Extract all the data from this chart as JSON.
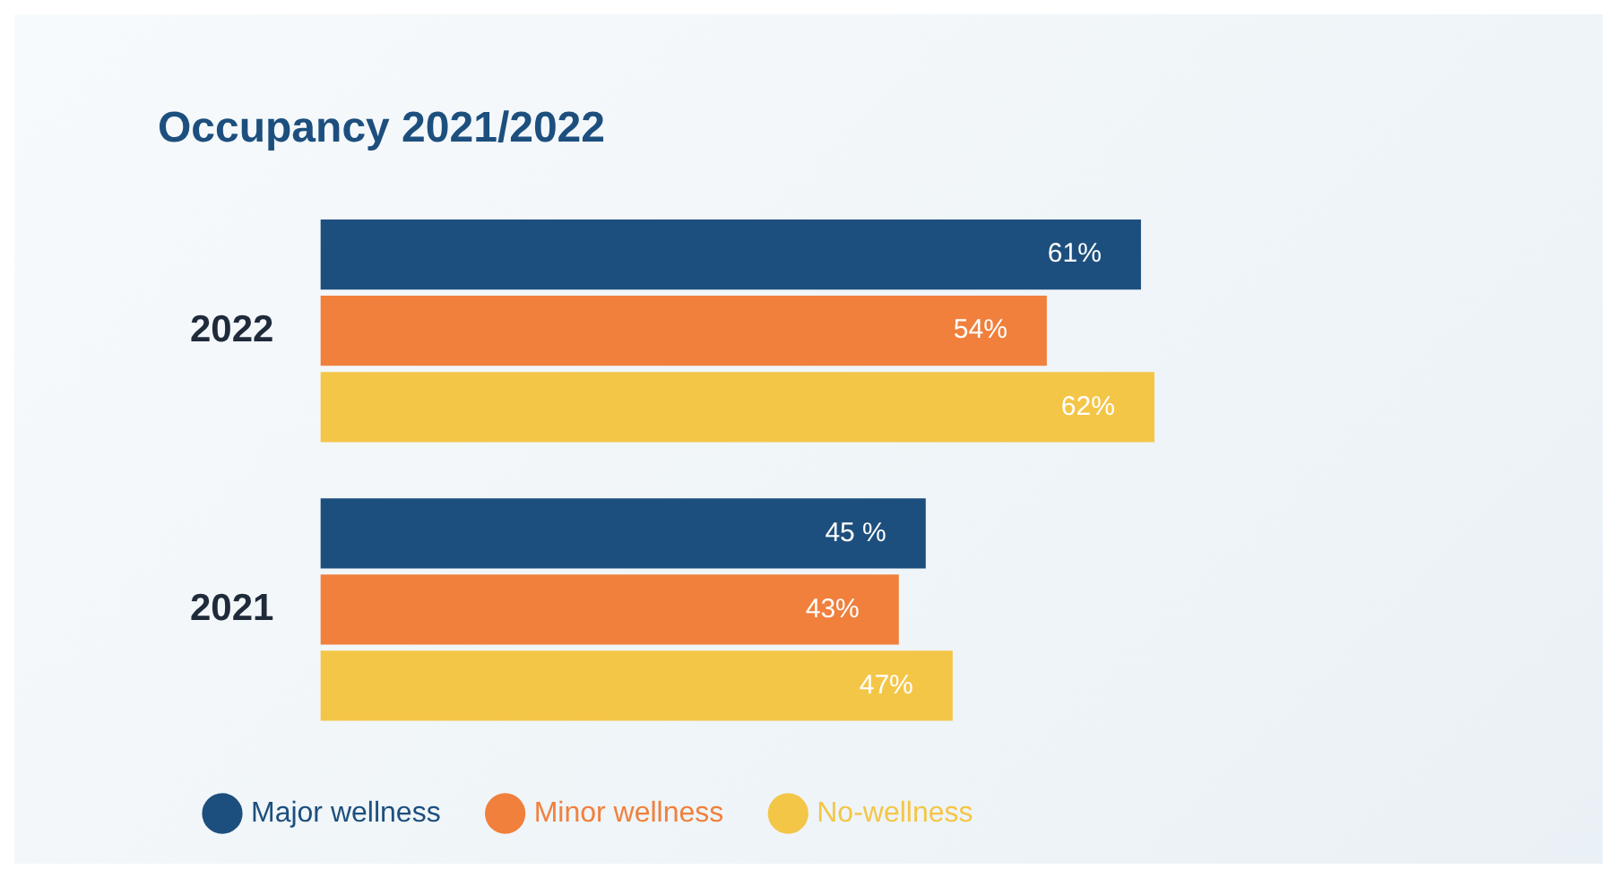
{
  "chart_data": {
    "type": "bar",
    "orientation": "horizontal",
    "title": "Occupancy 2021/2022",
    "categories": [
      "2022",
      "2021"
    ],
    "series": [
      {
        "name": "Major wellness",
        "color": "#1d4f7e",
        "values": [
          61,
          45
        ],
        "value_labels": [
          "61%",
          "45 %"
        ]
      },
      {
        "name": "Minor wellness",
        "color": "#f0803c",
        "values": [
          54,
          43
        ],
        "value_labels": [
          "54%",
          "43%"
        ]
      },
      {
        "name": "No-wellness",
        "color": "#f4c647",
        "values": [
          62,
          47
        ],
        "value_labels": [
          "62%",
          "47%"
        ]
      }
    ],
    "tick_labels": "y",
    "grid": false,
    "legend": "bottom left"
  }
}
